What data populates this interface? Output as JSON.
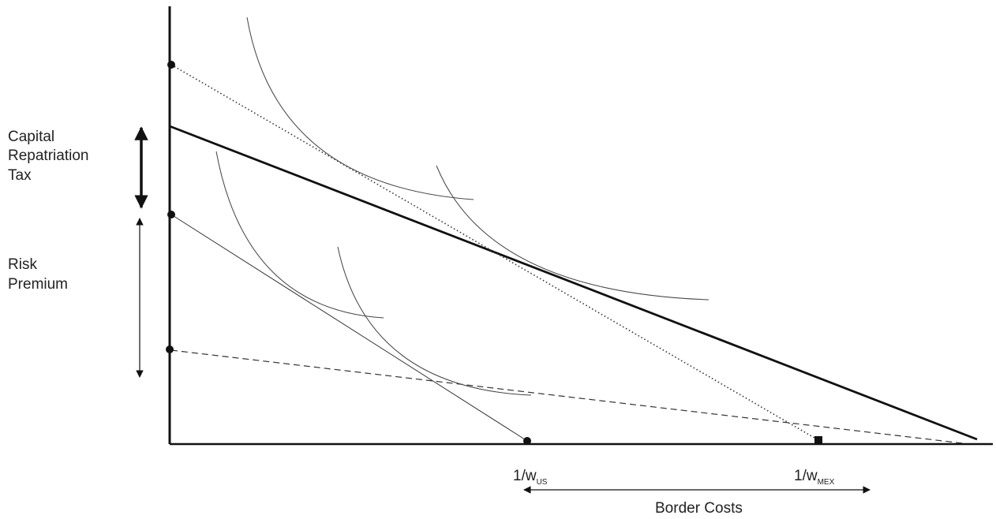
{
  "labels": {
    "capital_line1": "Capital",
    "capital_line2": "Repatriation",
    "capital_line3": "Tax",
    "risk_line1": "Risk",
    "risk_line2": "Premium",
    "x_tick_us_main": "1/w",
    "x_tick_us_sub": "US",
    "x_tick_mex_main": "1/w",
    "x_tick_mex_sub": "MEX",
    "border_costs": "Border Costs"
  },
  "colors": {
    "axis": "#111111",
    "line": "#111111",
    "curve": "#333333",
    "text": "#222222",
    "background": "#ffffff"
  }
}
